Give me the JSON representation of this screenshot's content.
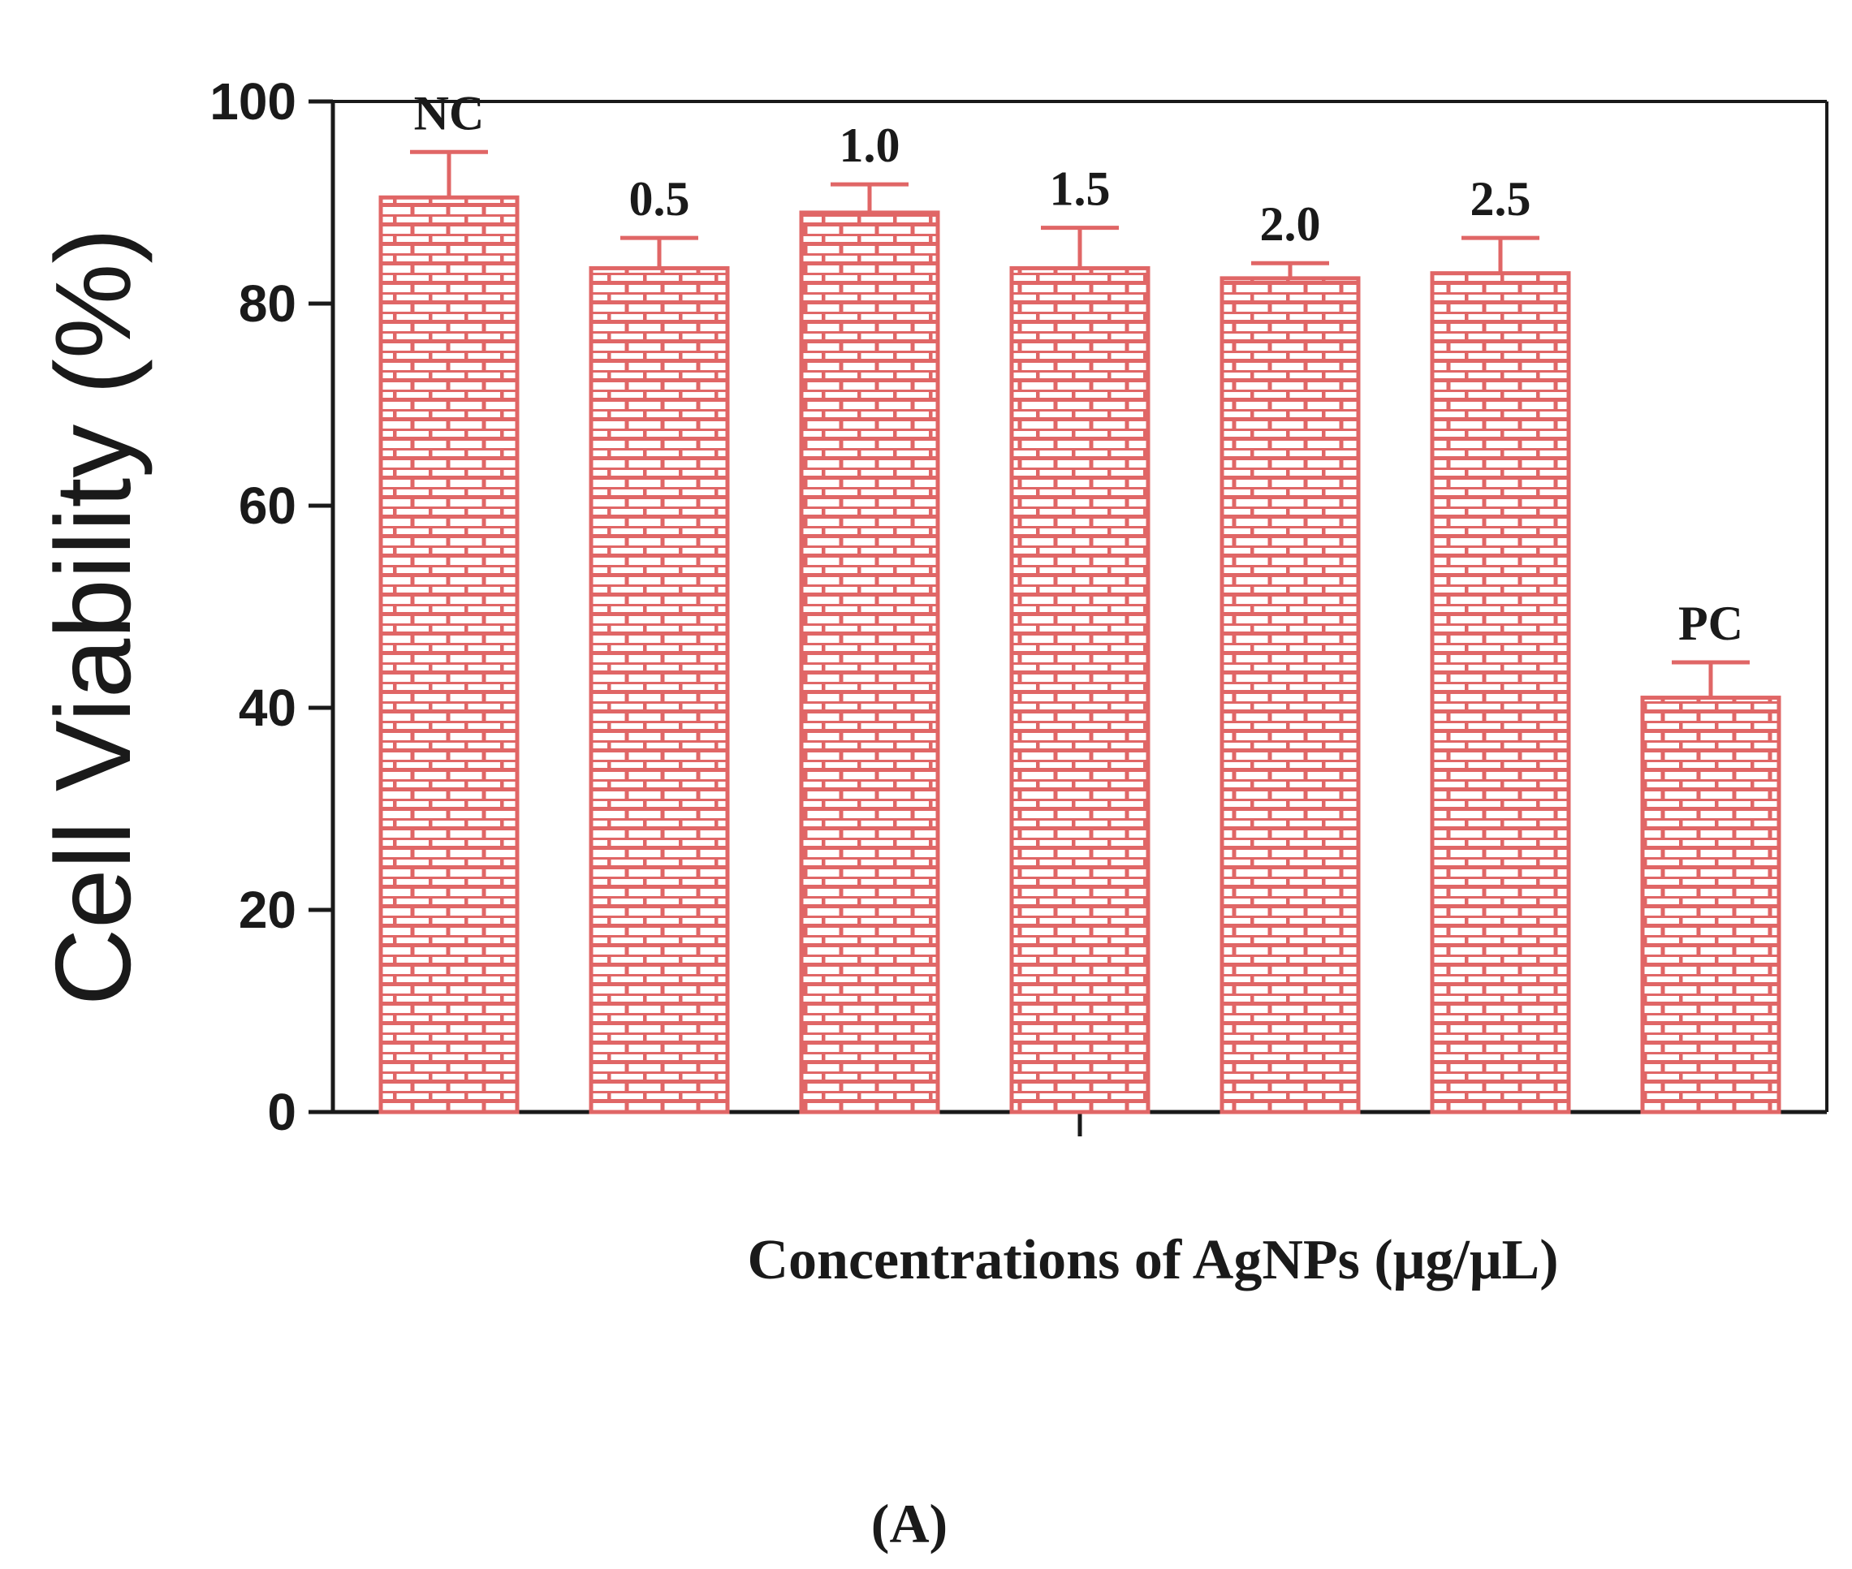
{
  "chart_data": {
    "type": "bar",
    "categories": [
      "NC",
      "0.5",
      "1.0",
      "1.5",
      "2.0",
      "2.5",
      "PC"
    ],
    "values": [
      90.5,
      83.5,
      89,
      83.5,
      82.5,
      83,
      41
    ],
    "errors": [
      4.5,
      3,
      2.8,
      4,
      1.5,
      3.5,
      3.5
    ],
    "ylabel": "Cell Viability (%)",
    "xlabel": "Concentrations of AgNPs (μg/μL)",
    "ylim": [
      0,
      100
    ],
    "yticks": [
      "0",
      "20",
      "40",
      "60",
      "80",
      "100"
    ],
    "panel_label": "(A)",
    "bar_color": "#e06666",
    "pattern": "brick",
    "grid": false
  }
}
